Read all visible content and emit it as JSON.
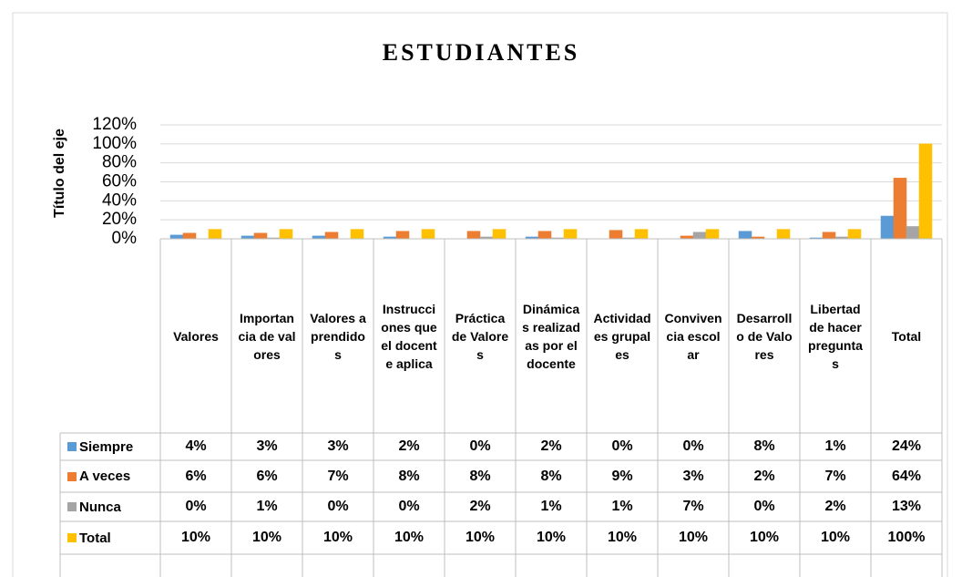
{
  "chart_data": {
    "type": "bar",
    "title": "ESTUDIANTES",
    "y_label": "Título del eje",
    "categories": [
      "Valores",
      "Importancia de valores",
      "Valores aprendidos",
      "Instrucciones que el docente aplica",
      "Práctica de Valores",
      "Dinámicas realizadas por el docente",
      "Actividades grupales",
      "Convivencia escolar",
      "Desarrollo de Valores",
      "Libertad de hacer preguntas",
      "Total"
    ],
    "series": [
      {
        "name": "Siempre",
        "color": "#5b9bd5",
        "values": [
          4,
          3,
          3,
          2,
          0,
          2,
          0,
          0,
          8,
          1,
          24
        ],
        "value_labels": [
          "4%",
          "3%",
          "3%",
          "2%",
          "0%",
          "2%",
          "0%",
          "0%",
          "8%",
          "1%",
          "24%"
        ]
      },
      {
        "name": "A veces",
        "color": "#ed7d31",
        "values": [
          6,
          6,
          7,
          8,
          8,
          8,
          9,
          3,
          2,
          7,
          64
        ],
        "value_labels": [
          "6%",
          "6%",
          "7%",
          "8%",
          "8%",
          "8%",
          "9%",
          "3%",
          "2%",
          "7%",
          "64%"
        ]
      },
      {
        "name": "Nunca",
        "color": "#a5a5a5",
        "values": [
          0,
          1,
          0,
          0,
          2,
          1,
          1,
          7,
          0,
          2,
          13
        ],
        "value_labels": [
          "0%",
          "1%",
          "0%",
          "0%",
          "2%",
          "1%",
          "1%",
          "7%",
          "0%",
          "2%",
          "13%"
        ]
      },
      {
        "name": "Total",
        "color": "#ffc000",
        "values": [
          10,
          10,
          10,
          10,
          10,
          10,
          10,
          10,
          10,
          10,
          100
        ],
        "value_labels": [
          "10%",
          "10%",
          "10%",
          "10%",
          "10%",
          "10%",
          "10%",
          "10%",
          "10%",
          "10%",
          "100%"
        ]
      }
    ],
    "ylim": [
      0,
      120
    ],
    "yticks": [
      {
        "value": 0,
        "label": "0%"
      },
      {
        "value": 20,
        "label": "20%"
      },
      {
        "value": 40,
        "label": "40%"
      },
      {
        "value": 60,
        "label": "60%"
      },
      {
        "value": 80,
        "label": "80%"
      },
      {
        "value": 100,
        "label": "100%"
      },
      {
        "value": 120,
        "label": "120%"
      }
    ],
    "grid": true
  }
}
